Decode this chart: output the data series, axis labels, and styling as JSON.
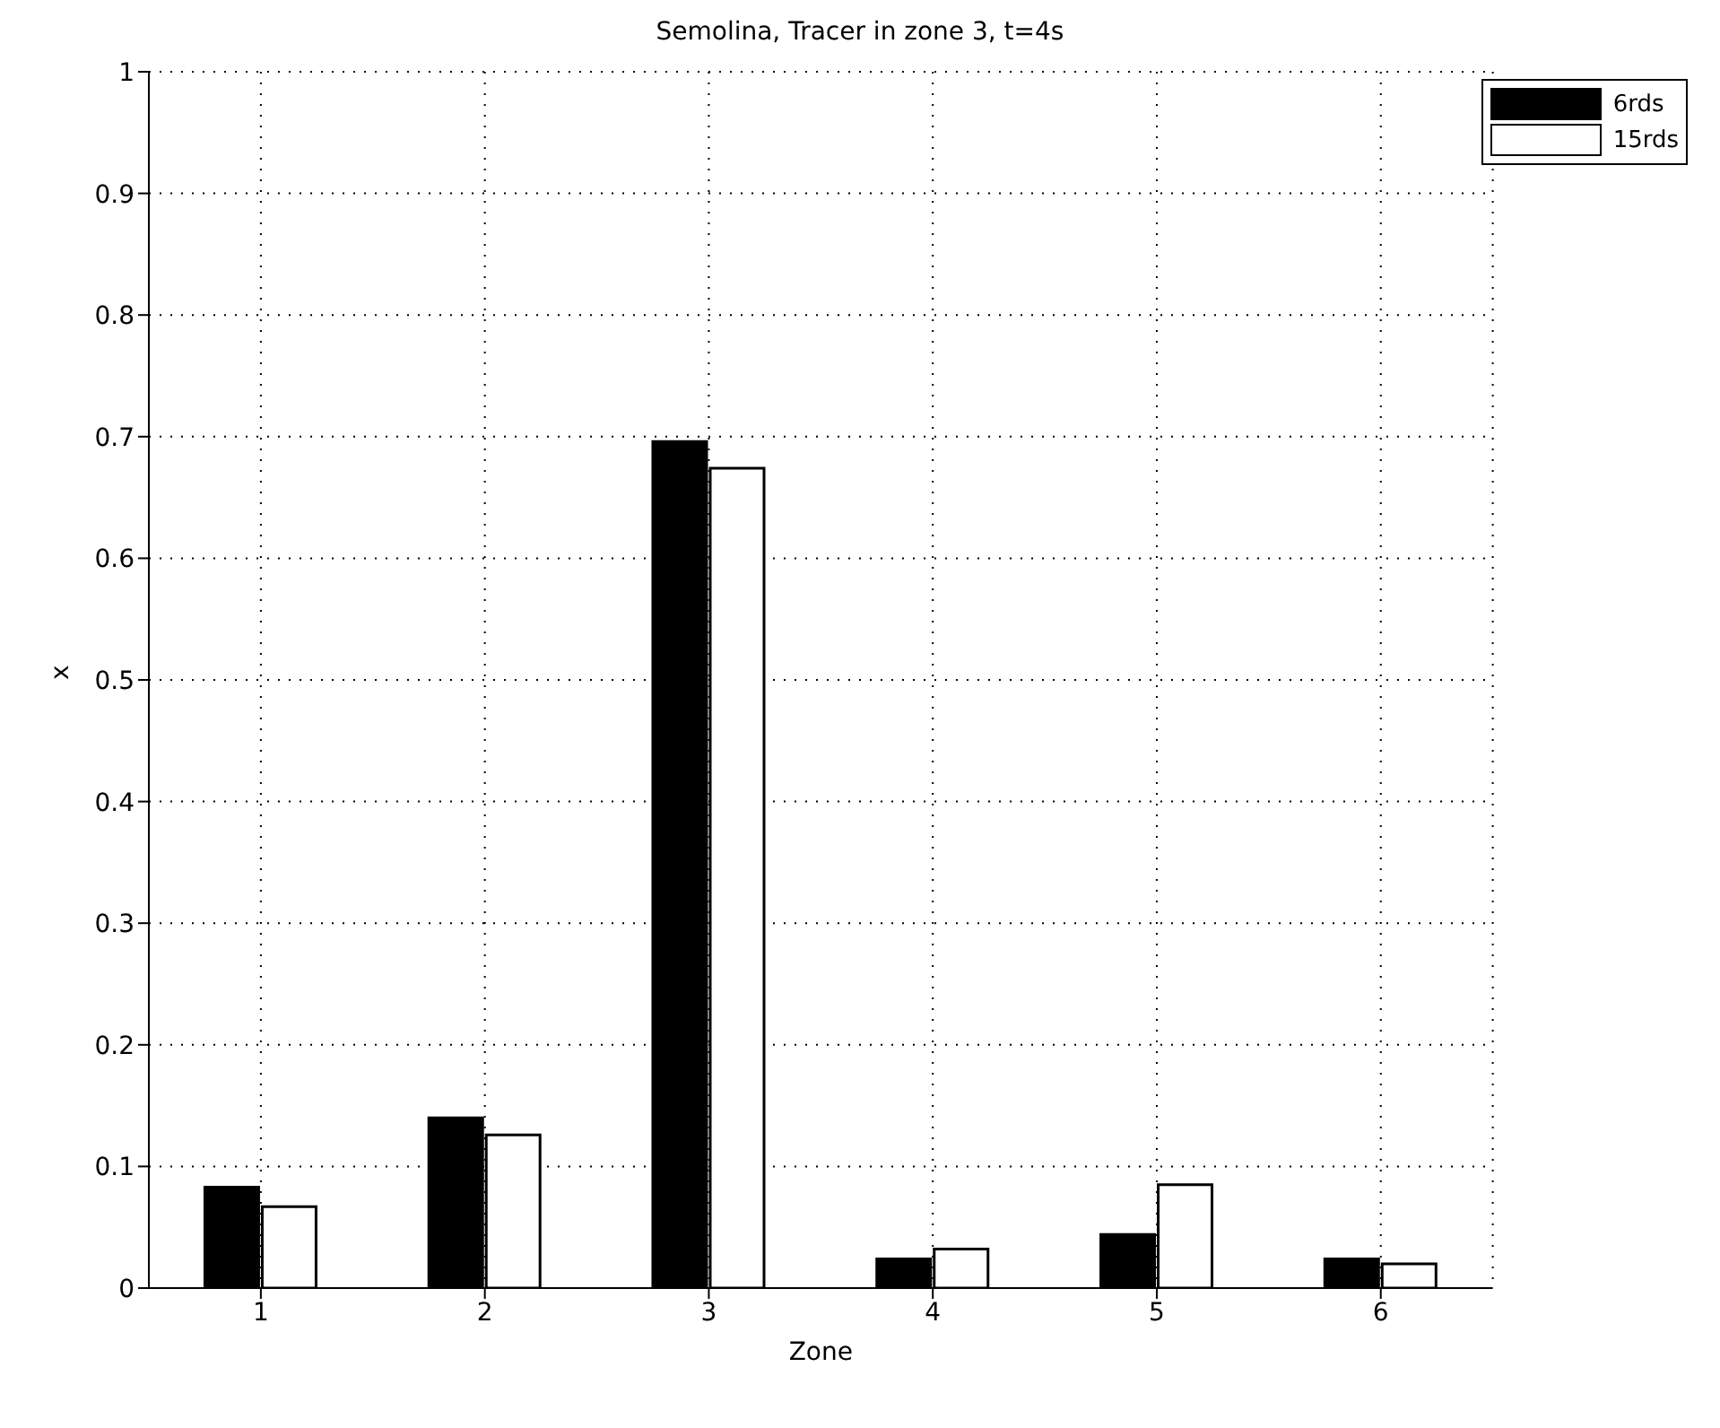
{
  "chart_data": {
    "type": "bar",
    "title": "Semolina, Tracer in zone 3, t=4s",
    "xlabel": "Zone",
    "ylabel": "x",
    "categories": [
      "1",
      "2",
      "3",
      "4",
      "5",
      "6"
    ],
    "series": [
      {
        "name": "6rds",
        "color": "#000000",
        "values": [
          0.083,
          0.14,
          0.696,
          0.024,
          0.044,
          0.024
        ]
      },
      {
        "name": "15rds",
        "color": "#ffffff",
        "values": [
          0.067,
          0.126,
          0.674,
          0.032,
          0.085,
          0.02
        ]
      }
    ],
    "ylim": [
      0,
      1
    ],
    "yticks": [
      0,
      0.1,
      0.2,
      0.3,
      0.4,
      0.5,
      0.6,
      0.7,
      0.8,
      0.9,
      1
    ],
    "grid": true,
    "legend": "top right"
  }
}
